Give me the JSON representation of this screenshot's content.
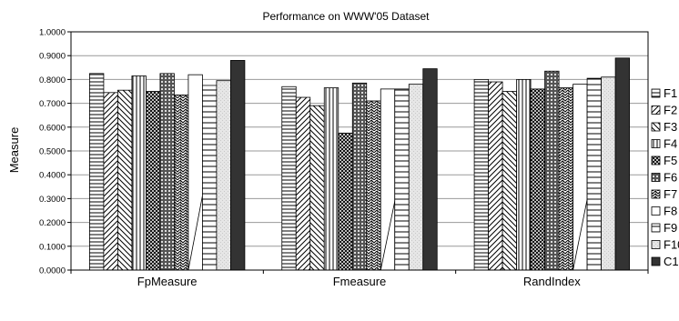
{
  "chart_data": {
    "type": "bar",
    "title": "Performance on WWW'05 Dataset",
    "xlabel": "",
    "ylabel": "Measure",
    "ylim": [
      0,
      1
    ],
    "y_ticks": [
      "0.0000",
      "0.1000",
      "0.2000",
      "0.3000",
      "0.4000",
      "0.5000",
      "0.6000",
      "0.7000",
      "0.8000",
      "0.9000",
      "1.0000"
    ],
    "categories": [
      "FpMeasure",
      "Fmeasure",
      "RandIndex"
    ],
    "grid": "horizontal",
    "legend_position": "right",
    "series": [
      {
        "name": "F1",
        "pattern": "hlines",
        "values": [
          0.825,
          0.77,
          0.8
        ]
      },
      {
        "name": "F2",
        "pattern": "diag-up",
        "values": [
          0.745,
          0.725,
          0.79
        ]
      },
      {
        "name": "F3",
        "pattern": "diag-down",
        "values": [
          0.755,
          0.69,
          0.75
        ]
      },
      {
        "name": "F4",
        "pattern": "vlines",
        "values": [
          0.815,
          0.765,
          0.8
        ]
      },
      {
        "name": "F5",
        "pattern": "crosshatch",
        "values": [
          0.75,
          0.575,
          0.76
        ]
      },
      {
        "name": "F6",
        "pattern": "grid",
        "values": [
          0.825,
          0.785,
          0.835
        ]
      },
      {
        "name": "F7",
        "pattern": "zigzag",
        "values": [
          0.735,
          0.71,
          0.765
        ]
      },
      {
        "name": "F8",
        "pattern": "white",
        "values": [
          0.82,
          0.76,
          0.78
        ]
      },
      {
        "name": "F9",
        "pattern": "hlines-wide",
        "values": [
          0.775,
          0.76,
          0.805
        ]
      },
      {
        "name": "F10",
        "pattern": "light",
        "values": [
          0.795,
          0.78,
          0.81
        ]
      },
      {
        "name": "C1",
        "pattern": "solid",
        "values": [
          0.88,
          0.845,
          0.89
        ]
      }
    ]
  }
}
